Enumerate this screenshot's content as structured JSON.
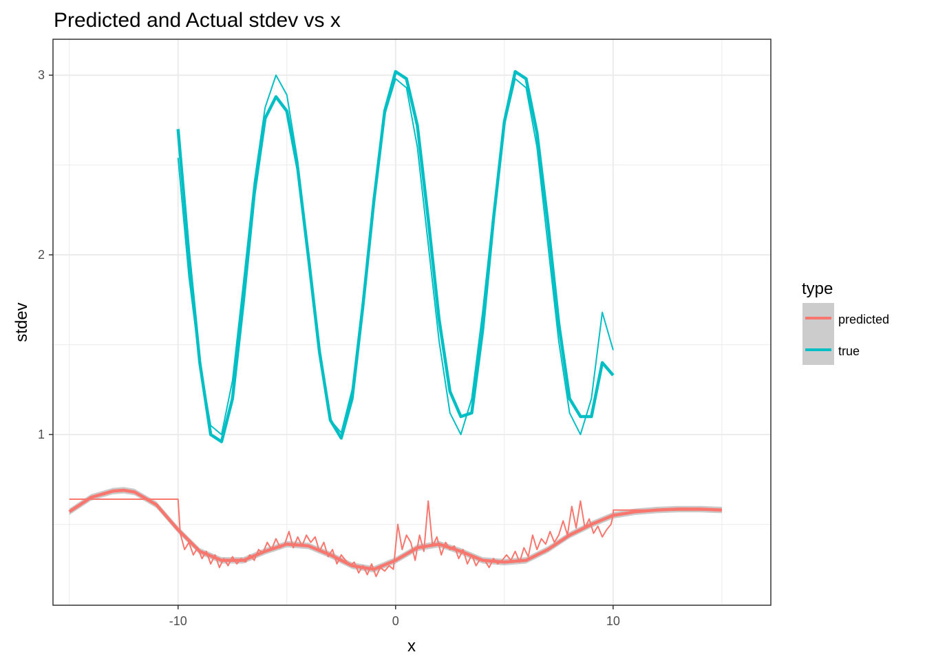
{
  "chart_data": {
    "type": "line",
    "title": "Predicted and Actual stdev vs x",
    "xlabel": "x",
    "ylabel": "stdev",
    "xlim": [
      -15.75,
      17.25
    ],
    "ylim": [
      0.05,
      3.2
    ],
    "x_ticks": [
      -10,
      0,
      10
    ],
    "x_tick_labels": [
      "-10",
      "0",
      "10"
    ],
    "x_minor_ticks": [
      -15,
      -5,
      5,
      15
    ],
    "y_ticks": [
      1,
      2,
      3
    ],
    "y_tick_labels": [
      "1",
      "2",
      "3"
    ],
    "y_minor_ticks": [
      0.5,
      1.5,
      2.5
    ],
    "grid": true,
    "legend": {
      "title": "type",
      "position": "right",
      "entries": [
        "predicted",
        "true"
      ]
    },
    "colors": {
      "predicted": "#f8766d",
      "true": "#00bfc4",
      "ribbon": "#bdbdbd"
    },
    "series": [
      {
        "name": "predicted",
        "role": "raw",
        "x": [
          -15,
          -10,
          -9.9,
          -9.7,
          -9.5,
          -9.3,
          -9.1,
          -8.9,
          -8.7,
          -8.5,
          -8.3,
          -8.1,
          -7.9,
          -7.7,
          -7.5,
          -7.3,
          -7.1,
          -6.9,
          -6.7,
          -6.5,
          -6.3,
          -6.1,
          -5.9,
          -5.7,
          -5.5,
          -5.3,
          -5.1,
          -4.9,
          -4.7,
          -4.5,
          -4.3,
          -4.1,
          -3.9,
          -3.7,
          -3.5,
          -3.3,
          -3.1,
          -2.9,
          -2.7,
          -2.5,
          -2.3,
          -2.1,
          -1.9,
          -1.7,
          -1.5,
          -1.3,
          -1.1,
          -0.9,
          -0.7,
          -0.5,
          -0.3,
          -0.1,
          0.1,
          0.3,
          0.5,
          0.7,
          0.9,
          1.1,
          1.3,
          1.5,
          1.7,
          1.9,
          2.1,
          2.3,
          2.5,
          2.7,
          2.9,
          3.1,
          3.3,
          3.5,
          3.7,
          3.9,
          4.1,
          4.3,
          4.5,
          4.7,
          4.9,
          5.1,
          5.3,
          5.5,
          5.7,
          5.9,
          6.1,
          6.3,
          6.5,
          6.7,
          6.9,
          7.1,
          7.3,
          7.5,
          7.7,
          7.9,
          8.1,
          8.3,
          8.5,
          8.7,
          8.9,
          9.1,
          9.3,
          9.5,
          9.7,
          9.9,
          10,
          10.01,
          15
        ],
        "values": [
          0.64,
          0.64,
          0.45,
          0.36,
          0.4,
          0.33,
          0.37,
          0.31,
          0.35,
          0.28,
          0.33,
          0.26,
          0.31,
          0.27,
          0.32,
          0.28,
          0.31,
          0.29,
          0.33,
          0.3,
          0.36,
          0.34,
          0.4,
          0.36,
          0.42,
          0.37,
          0.39,
          0.46,
          0.37,
          0.43,
          0.38,
          0.44,
          0.4,
          0.43,
          0.35,
          0.4,
          0.32,
          0.36,
          0.28,
          0.33,
          0.3,
          0.27,
          0.29,
          0.23,
          0.27,
          0.22,
          0.28,
          0.21,
          0.26,
          0.24,
          0.27,
          0.25,
          0.5,
          0.36,
          0.44,
          0.4,
          0.3,
          0.44,
          0.35,
          0.63,
          0.38,
          0.43,
          0.33,
          0.4,
          0.36,
          0.38,
          0.31,
          0.36,
          0.28,
          0.33,
          0.27,
          0.31,
          0.3,
          0.26,
          0.31,
          0.28,
          0.3,
          0.33,
          0.3,
          0.35,
          0.29,
          0.37,
          0.32,
          0.44,
          0.36,
          0.42,
          0.39,
          0.46,
          0.4,
          0.44,
          0.52,
          0.44,
          0.6,
          0.48,
          0.63,
          0.48,
          0.53,
          0.45,
          0.49,
          0.43,
          0.47,
          0.5,
          0.55,
          0.58,
          0.58
        ]
      },
      {
        "name": "predicted",
        "role": "smooth",
        "x": [
          -15,
          -14,
          -13,
          -12.5,
          -12,
          -11,
          -10,
          -9,
          -8,
          -7,
          -6,
          -5,
          -4,
          -3,
          -2,
          -1,
          0,
          1,
          2,
          3,
          4,
          5,
          6,
          7,
          8,
          9,
          10,
          11,
          12,
          13,
          14,
          15
        ],
        "values": [
          0.57,
          0.65,
          0.685,
          0.69,
          0.68,
          0.61,
          0.47,
          0.35,
          0.3,
          0.3,
          0.35,
          0.39,
          0.38,
          0.33,
          0.27,
          0.25,
          0.3,
          0.37,
          0.39,
          0.35,
          0.3,
          0.29,
          0.3,
          0.36,
          0.44,
          0.5,
          0.55,
          0.57,
          0.58,
          0.585,
          0.585,
          0.58
        ]
      },
      {
        "name": "true",
        "role": "thin",
        "x": [
          -10,
          -9.5,
          -9,
          -8.5,
          -8,
          -7.5,
          -7,
          -6.5,
          -6,
          -5.5,
          -5,
          -4.5,
          -4,
          -3.5,
          -3,
          -2.5,
          -2,
          -1.5,
          -1,
          -0.5,
          0,
          0.5,
          1,
          1.5,
          2,
          2.5,
          3,
          3.5,
          4,
          4.5,
          5,
          5.5,
          6,
          6.5,
          7,
          7.5,
          8,
          8.5,
          9,
          9.5,
          10
        ],
        "values": [
          2.54,
          1.88,
          1.4,
          1.05,
          1.0,
          1.3,
          1.84,
          2.4,
          2.82,
          3.0,
          2.89,
          2.52,
          1.98,
          1.44,
          1.08,
          1.01,
          1.25,
          1.76,
          2.32,
          2.78,
          2.98,
          2.93,
          2.6,
          2.06,
          1.52,
          1.12,
          1.0,
          1.2,
          1.68,
          2.24,
          2.72,
          2.98,
          2.93,
          2.6,
          2.06,
          1.52,
          1.12,
          1.0,
          1.2,
          1.68,
          1.47
        ]
      },
      {
        "name": "true",
        "role": "thick",
        "x": [
          -10,
          -9.5,
          -9,
          -8.5,
          -8,
          -7.5,
          -7,
          -6.5,
          -6,
          -5.5,
          -5,
          -4.5,
          -4,
          -3.5,
          -3,
          -2.5,
          -2,
          -1.5,
          -1,
          -0.5,
          0,
          0.5,
          1,
          1.5,
          2,
          2.5,
          3,
          3.5,
          4,
          4.5,
          5,
          5.5,
          6,
          6.5,
          7,
          7.5,
          8,
          8.5,
          9,
          9.5,
          10
        ],
        "values": [
          2.7,
          2.0,
          1.4,
          1.0,
          0.96,
          1.2,
          1.74,
          2.34,
          2.76,
          2.88,
          2.8,
          2.48,
          1.98,
          1.46,
          1.08,
          0.98,
          1.2,
          1.72,
          2.3,
          2.8,
          3.02,
          2.98,
          2.72,
          2.2,
          1.64,
          1.24,
          1.1,
          1.12,
          1.58,
          2.2,
          2.74,
          3.02,
          2.98,
          2.68,
          2.18,
          1.62,
          1.2,
          1.1,
          1.1,
          1.4,
          1.33
        ]
      }
    ]
  }
}
